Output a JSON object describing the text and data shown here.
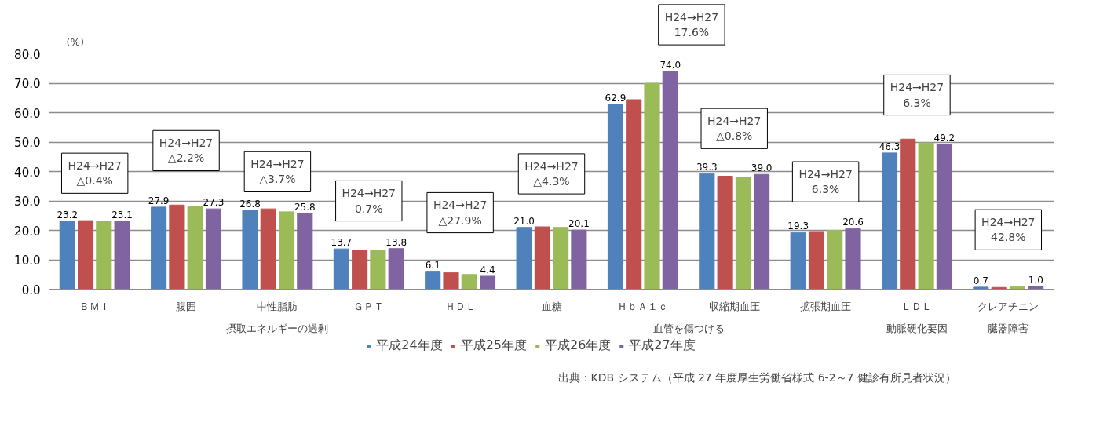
{
  "chart_data": {
    "type": "bar",
    "ylabel": "(%)",
    "categories": [
      "ＢＭＩ",
      "腹囲",
      "中性脂肪",
      "ＧＰＴ",
      "ＨＤＬ",
      "血糖",
      "ＨｂＡ１ｃ",
      "収縮期血圧",
      "拡張期血圧",
      "ＬＤＬ",
      "クレアチニン"
    ],
    "series": [
      {
        "name": "平成24年度",
        "color": "#4f81bd",
        "values": [
          23.2,
          27.9,
          26.8,
          13.7,
          6.1,
          21.0,
          62.9,
          39.3,
          19.3,
          46.3,
          0.7
        ],
        "value_labels": [
          "23.2",
          "27.9",
          "26.8",
          "13.7",
          "6.1",
          "21.0",
          "62.9",
          "39.3",
          "19.3",
          "46.3",
          "0.7"
        ]
      },
      {
        "name": "平成25年度",
        "color": "#c0504d",
        "values": [
          23.3,
          28.6,
          27.3,
          13.3,
          5.7,
          21.2,
          64.4,
          38.4,
          19.6,
          51.0,
          0.6
        ]
      },
      {
        "name": "平成26年度",
        "color": "#9bbb59",
        "values": [
          23.2,
          28.0,
          26.3,
          13.3,
          5.0,
          21.0,
          70.0,
          38.0,
          20.0,
          49.7,
          0.9
        ]
      },
      {
        "name": "平成27年度",
        "color": "#8064a2",
        "values": [
          23.1,
          27.3,
          25.8,
          13.8,
          4.4,
          20.1,
          74.0,
          39.0,
          20.6,
          49.2,
          1.0
        ],
        "value_labels": [
          "23.1",
          "27.3",
          "25.8",
          "13.8",
          "4.4",
          "20.1",
          "74.0",
          "39.0",
          "20.6",
          "49.2",
          "1.0"
        ]
      }
    ],
    "ylim": [
      0,
      80
    ],
    "yticks": [
      {
        "value": 0,
        "label": "0.0"
      },
      {
        "value": 10,
        "label": "10.0"
      },
      {
        "value": 20,
        "label": "20.0"
      },
      {
        "value": 30,
        "label": "30.0"
      },
      {
        "value": 40,
        "label": "40.0"
      },
      {
        "value": 50,
        "label": "50.0"
      },
      {
        "value": 60,
        "label": "60.0"
      },
      {
        "value": 70,
        "label": "70.0"
      },
      {
        "value": 80,
        "label": "80.0"
      }
    ],
    "grid": "y",
    "legend": "bottom",
    "annotations": [
      "H24→H27\n△0.4%",
      "H24→H27\n△2.2%",
      "H24→H27\n△3.7%",
      "H24→H27\n0.7%",
      "H24→H27\n△27.9%",
      "H24→H27\n△4.3%",
      "H24→H27\n17.6%",
      "H24→H27\n△0.8%",
      "H24→H27\n6.3%",
      "H24→H27\n6.3%",
      "H24→H27\n42.8%",
      "摂取エネルギーの過剰",
      "血管を傷つける",
      "動脈硬化要因",
      "臓器障害",
      "出典：KDB システム（平成 27 年度厚生労働省様式 6-2～7 健診有所見者状況）"
    ]
  }
}
